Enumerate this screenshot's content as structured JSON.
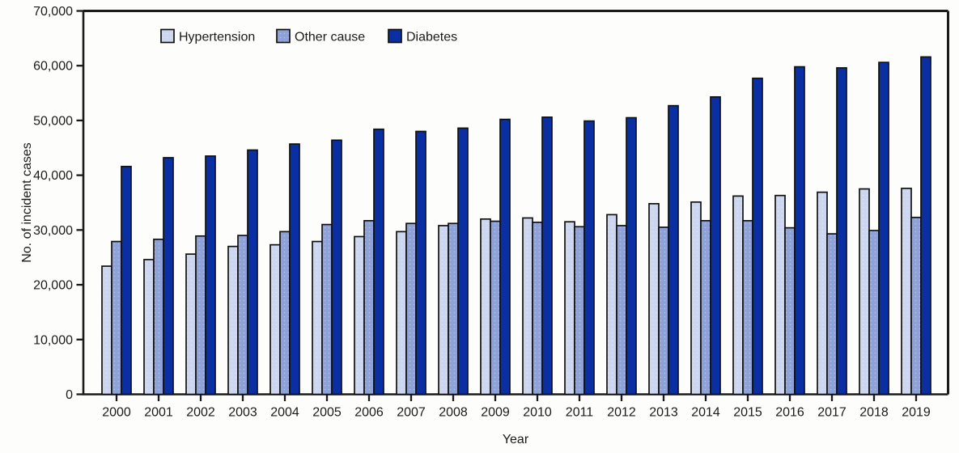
{
  "chart_data": {
    "type": "bar",
    "title": "",
    "xlabel": "Year",
    "ylabel": "No. of incident cases",
    "ylim": [
      0,
      70000
    ],
    "ytick_step": 10000,
    "ytick_labels": [
      "0",
      "10,000",
      "20,000",
      "30,000",
      "40,000",
      "50,000",
      "60,000",
      "70,000"
    ],
    "grid": false,
    "legend_position": "top-left-inside",
    "axis_color": "#1a1a1a",
    "bar_border_color": "#111111",
    "categories": [
      "2000",
      "2001",
      "2002",
      "2003",
      "2004",
      "2005",
      "2006",
      "2007",
      "2008",
      "2009",
      "2010",
      "2011",
      "2012",
      "2013",
      "2014",
      "2015",
      "2016",
      "2017",
      "2018",
      "2019"
    ],
    "series": [
      {
        "name": "Hypertension",
        "color": "#ccd6ee",
        "dot_color": "#dde4f5",
        "values": [
          23400,
          24600,
          25600,
          27000,
          27300,
          27900,
          28800,
          29700,
          30800,
          32000,
          32200,
          31500,
          32800,
          34800,
          35100,
          36200,
          36300,
          36900,
          37500,
          37600
        ]
      },
      {
        "name": "Other cause",
        "color": "#8fa2d8",
        "dot_color": "#b4c1e8",
        "values": [
          27900,
          28300,
          28900,
          29000,
          29700,
          31000,
          31700,
          31200,
          31200,
          31600,
          31400,
          30600,
          30800,
          30500,
          31700,
          31700,
          30400,
          29300,
          29900,
          32300
        ]
      },
      {
        "name": "Diabetes",
        "color": "#0a2fa3",
        "dot_color": "#0a2fa3",
        "values": [
          41600,
          43200,
          43500,
          44600,
          45700,
          46400,
          48400,
          48000,
          48600,
          50200,
          50600,
          49900,
          50500,
          52700,
          54300,
          57700,
          59800,
          59600,
          60600,
          61600
        ]
      }
    ]
  }
}
